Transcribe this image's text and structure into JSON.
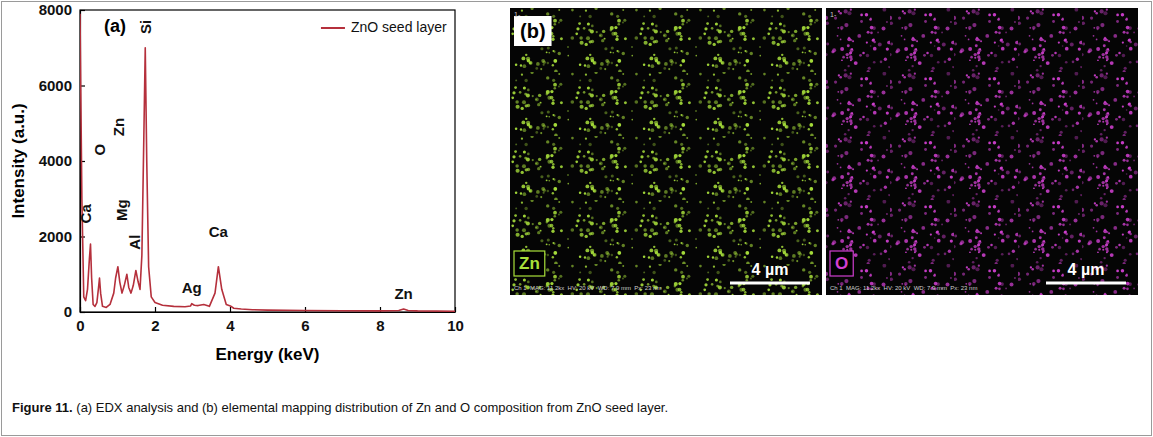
{
  "chart_data": {
    "type": "line",
    "panel_label": "(a)",
    "x_label": "Energy (keV)",
    "y_label": "Intensity (a.u.)",
    "x": [
      0,
      0.05,
      0.1,
      0.15,
      0.2,
      0.25,
      0.28,
      0.31,
      0.35,
      0.4,
      0.45,
      0.5,
      0.52,
      0.55,
      0.6,
      0.7,
      0.8,
      0.9,
      0.95,
      1.01,
      1.06,
      1.12,
      1.18,
      1.25,
      1.3,
      1.36,
      1.42,
      1.49,
      1.55,
      1.6,
      1.65,
      1.7,
      1.74,
      1.78,
      1.83,
      1.9,
      2.0,
      2.2,
      2.5,
      2.8,
      2.95,
      2.98,
      3.05,
      3.15,
      3.3,
      3.45,
      3.6,
      3.69,
      3.78,
      3.9,
      4.01,
      4.1,
      4.3,
      4.6,
      5,
      6,
      7,
      8,
      8.5,
      8.63,
      8.75,
      9,
      10
    ],
    "series": [
      {
        "name": "ZnO seed layer",
        "color": "#b5303c",
        "values": [
          7900,
          3000,
          400,
          300,
          600,
          1400,
          1800,
          900,
          200,
          150,
          250,
          700,
          900,
          500,
          150,
          120,
          200,
          500,
          900,
          1200,
          800,
          500,
          700,
          1000,
          650,
          500,
          700,
          1100,
          800,
          600,
          1500,
          4500,
          7000,
          4000,
          1200,
          400,
          250,
          180,
          150,
          140,
          160,
          220,
          180,
          170,
          200,
          150,
          500,
          1200,
          600,
          200,
          160,
          100,
          80,
          60,
          50,
          40,
          35,
          30,
          40,
          80,
          40,
          30,
          20
        ]
      }
    ],
    "xlim": [
      0,
      10
    ],
    "xticks": [
      0,
      2,
      4,
      6,
      8,
      10
    ],
    "ylim": [
      0,
      8000
    ],
    "yticks": [
      0,
      2000,
      4000,
      6000,
      8000
    ],
    "legend": "top-right",
    "annotations": [
      {
        "text": "Ca",
        "x": 0.2,
        "y": 2600
      },
      {
        "text": "O",
        "x": 0.55,
        "y": 4300
      },
      {
        "text": "Zn",
        "x": 1.06,
        "y": 4900
      },
      {
        "text": "Mg",
        "x": 1.16,
        "y": 2700
      },
      {
        "text": "Al",
        "x": 1.5,
        "y": 1850
      },
      {
        "text": "Si",
        "x": 1.78,
        "y": 7550
      },
      {
        "text": "Ag",
        "x": 2.98,
        "y": 600
      },
      {
        "text": "Ca",
        "x": 3.69,
        "y": 2100
      },
      {
        "text": "Zn",
        "x": 8.63,
        "y": 450
      }
    ]
  },
  "mapping": {
    "panel_label": "(b)",
    "panels": [
      {
        "element": "Zn",
        "color": "#a8e03a",
        "scale_bar": "4 µm",
        "corner_text": "1-",
        "info": "Ch 1  MAG: 11.2kx  HV: 20 kV  WD: 7.9 mm  Px: 23 nm"
      },
      {
        "element": "O",
        "color": "#d13fd1",
        "scale_bar": "4 µm",
        "corner_text": "1-",
        "info": "Ch 1  MAG: 11.2kx  HV: 20 kV  WD: 7.9 mm  Px: 23 nm"
      }
    ]
  },
  "caption": {
    "number": "Figure 11.",
    "text": " (a) EDX analysis and (b) elemental mapping distribution of Zn and O composition from ZnO seed layer."
  }
}
